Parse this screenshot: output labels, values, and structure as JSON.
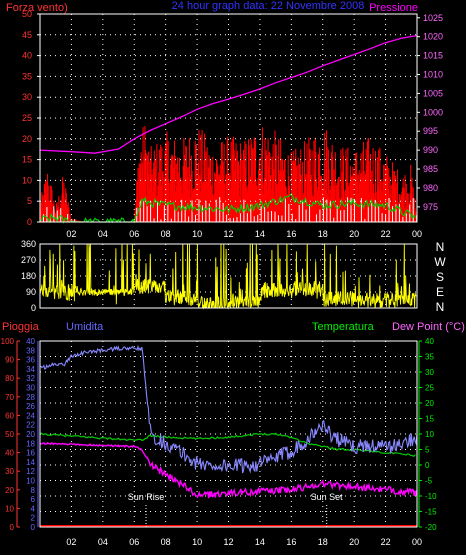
{
  "colors": {
    "background": "#000000",
    "grid": "#ffffff",
    "axis": "#ffffff",
    "wind": "#ff0000",
    "gust": "#ffffff",
    "windAvg": "#00cc00",
    "pressure": "#ff00ff",
    "direction": "#ffff00",
    "humidity": "#8888ff",
    "temperature": "#00cc00",
    "dewpoint": "#ff00ff",
    "rain": "#ff0000",
    "rainAxis": "#ff3333",
    "humidityAxis": "#6666ff",
    "tempAxis": "#00ee00",
    "dewAxis": "#ff66ff",
    "title": "#3333ff"
  },
  "header": {
    "left_label": "Forza vento)",
    "title": "24 hour graph data: 22 Novembre 2008",
    "right_label": "Pressione"
  },
  "compass": [
    "N",
    "W",
    "S",
    "E",
    "N"
  ],
  "bottom_labels": {
    "rain": "Pioggia",
    "humidity": "Umidita",
    "temperature": "Temperatura",
    "dewpoint": "Dew Point (°C)"
  },
  "markers": {
    "sunrise": "Sun Rise",
    "sunset": "Sun Set"
  },
  "chart_data": [
    {
      "type": "line",
      "name": "wind-pressure",
      "x_ticks": [
        "02",
        "04",
        "06",
        "08",
        "10",
        "12",
        "14",
        "16",
        "18",
        "20",
        "22",
        "00"
      ],
      "yleft_ticks": [
        "0",
        "5",
        "10",
        "15",
        "20",
        "25",
        "30",
        "35",
        "40",
        "45",
        "50"
      ],
      "yright_ticks": [
        "975",
        "980",
        "985",
        "990",
        "995",
        "1000",
        "1005",
        "1010",
        "1015",
        "1020",
        "1025"
      ],
      "yleft_range": [
        0,
        50
      ],
      "yright_range": [
        971,
        1026
      ],
      "x_range_hours": [
        0,
        24
      ],
      "pressure": {
        "x": [
          0,
          2,
          3.5,
          5,
          6,
          7,
          8,
          9,
          10,
          11,
          12,
          13,
          14,
          15,
          16,
          17,
          18,
          19,
          20,
          21,
          22,
          23,
          24
        ],
        "y": [
          990.0,
          989.6,
          989.2,
          990.3,
          993.0,
          995.2,
          997.0,
          998.8,
          1000.8,
          1002.3,
          1003.5,
          1004.8,
          1006.2,
          1007.8,
          1009.2,
          1010.6,
          1012.3,
          1013.8,
          1015.3,
          1016.8,
          1018.4,
          1019.6,
          1020.3
        ]
      },
      "wind_envelope": {
        "x": [
          0,
          0.5,
          1,
          1.5,
          2,
          3,
          4,
          5,
          6,
          6.3,
          6.7,
          7,
          8,
          9,
          10,
          11,
          12,
          13,
          14,
          15,
          16,
          17,
          18,
          19,
          20,
          21,
          22,
          23,
          23.6,
          24
        ],
        "y": [
          5,
          14,
          4,
          12,
          1,
          0,
          0,
          0,
          0,
          21,
          25,
          18,
          22,
          20,
          24,
          19,
          21,
          20,
          25,
          22,
          17,
          20,
          25,
          19,
          18,
          21,
          17,
          12,
          14,
          2
        ]
      },
      "wind_avg": {
        "x": [
          0,
          1,
          2,
          6,
          6.5,
          8,
          10,
          12,
          14,
          16,
          18,
          20,
          22,
          24
        ],
        "y": [
          0.5,
          1,
          0,
          0,
          5,
          4,
          3.5,
          3,
          4,
          6,
          4,
          4.5,
          4,
          1
        ]
      }
    },
    {
      "type": "scatter",
      "name": "wind-direction",
      "y_ticks": [
        "0",
        "90",
        "180",
        "270",
        "360"
      ],
      "y_range": [
        0,
        360
      ],
      "x_range_hours": [
        0,
        24
      ],
      "typical_direction_deg": [
        90,
        100,
        110,
        120,
        60,
        20,
        40,
        100,
        110,
        50,
        40,
        40,
        30
      ]
    },
    {
      "type": "line",
      "name": "humidity-temperature",
      "rain_ticks": [
        "0",
        "5",
        "10",
        "15",
        "20",
        "25",
        "30",
        "35",
        "40",
        "45",
        "50",
        "55",
        "60",
        "65",
        "70",
        "75",
        "80",
        "85",
        "90",
        "95",
        "100"
      ],
      "humidity_ticks": [
        "0",
        "2",
        "4",
        "6",
        "8",
        "10",
        "12",
        "14",
        "16",
        "18",
        "20",
        "22",
        "24",
        "26",
        "28",
        "30",
        "32",
        "34",
        "36",
        "38",
        "40"
      ],
      "temp_ticks": [
        "-20",
        "-15",
        "-10",
        "-5",
        "0",
        "5",
        "10",
        "15",
        "20",
        "25",
        "30",
        "35",
        "40"
      ],
      "temp_range": [
        -20,
        40
      ],
      "x_range_hours": [
        0,
        24
      ],
      "humidity": {
        "x": [
          0,
          0.5,
          1,
          1.5,
          2,
          3,
          4,
          5,
          6,
          6.5,
          6.8,
          7,
          7.5,
          8,
          9,
          10,
          11,
          12,
          13,
          14,
          15,
          16,
          17,
          17.5,
          18,
          18.5,
          19,
          20,
          21,
          22,
          23,
          24
        ],
        "y": [
          86,
          86,
          88,
          87,
          92,
          94,
          95,
          96,
          96,
          96,
          70,
          52,
          47,
          45,
          40,
          34,
          33,
          33,
          33,
          34,
          37,
          41,
          47,
          51,
          55,
          50,
          47,
          43,
          44,
          43,
          44,
          49
        ]
      },
      "temperature": {
        "x": [
          0,
          3,
          6,
          6.5,
          7,
          8,
          10,
          12,
          14,
          15,
          16,
          17,
          18,
          19,
          20,
          21,
          22,
          23,
          24
        ],
        "y": [
          10.0,
          9.0,
          8.0,
          8.0,
          9.5,
          9.0,
          8.5,
          9.0,
          10.0,
          10.0,
          9.0,
          7.0,
          6.0,
          5.0,
          5.0,
          4.5,
          4.0,
          3.5,
          3.0
        ]
      },
      "dewpoint": {
        "x": [
          0,
          3,
          6,
          6.5,
          7,
          8,
          9,
          10,
          11,
          12,
          14,
          16,
          18,
          19,
          20,
          21,
          22,
          23,
          24
        ],
        "y": [
          7.0,
          6.5,
          6.0,
          5.0,
          0.0,
          -3.0,
          -6.0,
          -10.0,
          -9.5,
          -9.0,
          -8.5,
          -8.0,
          -6.0,
          -6.5,
          -7.0,
          -7.5,
          -8.0,
          -8.5,
          -9.0
        ]
      },
      "rain": {
        "x": [
          0,
          24
        ],
        "y": [
          0,
          0
        ]
      },
      "sunrise_hour": 6.75,
      "sunset_hour": 18.25
    }
  ]
}
